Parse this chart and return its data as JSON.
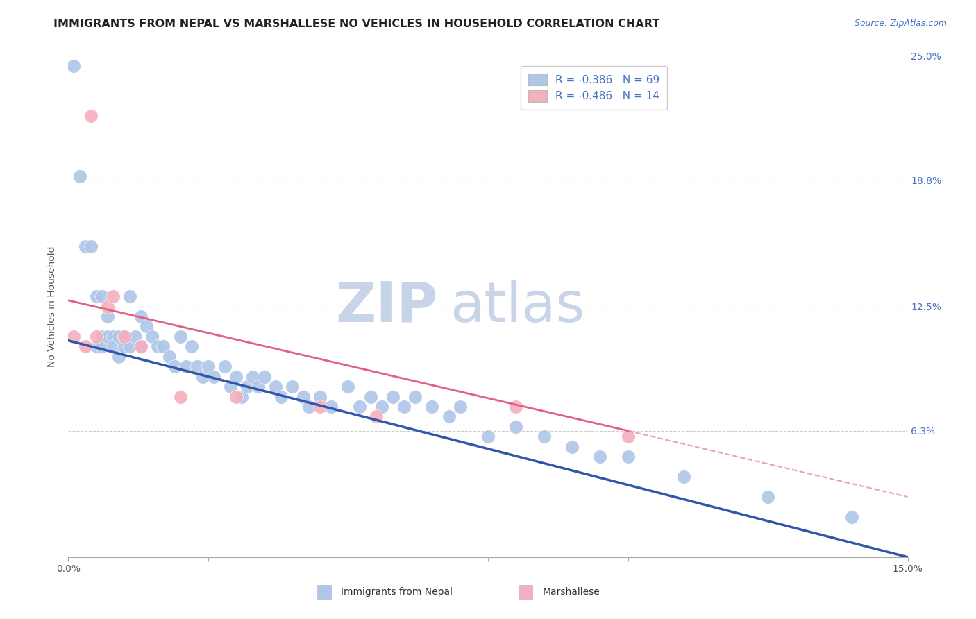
{
  "title": "IMMIGRANTS FROM NEPAL VS MARSHALLESE NO VEHICLES IN HOUSEHOLD CORRELATION CHART",
  "source_text": "Source: ZipAtlas.com",
  "ylabel": "No Vehicles in Household",
  "xlim": [
    0.0,
    0.15
  ],
  "ylim": [
    0.0,
    0.25
  ],
  "ytick_labels": [
    "6.3%",
    "12.5%",
    "18.8%",
    "25.0%"
  ],
  "ytick_values": [
    0.063,
    0.125,
    0.188,
    0.25
  ],
  "watermark_zip": "ZIP",
  "watermark_atlas": "atlas",
  "watermark_color": "#c8d4e8",
  "background_color": "#ffffff",
  "grid_color": "#cccccc",
  "nepal_color": "#aec6e8",
  "nepal_line_color": "#3355aa",
  "marshallese_color": "#f4b0be",
  "marshallese_line_color": "#e06080",
  "nepal_R": "-0.386",
  "nepal_N": "69",
  "marshallese_R": "-0.486",
  "marshallese_N": "14",
  "nepal_scatter_x": [
    0.001,
    0.002,
    0.003,
    0.004,
    0.005,
    0.005,
    0.006,
    0.006,
    0.006,
    0.007,
    0.007,
    0.008,
    0.008,
    0.009,
    0.009,
    0.01,
    0.01,
    0.011,
    0.011,
    0.012,
    0.013,
    0.013,
    0.014,
    0.015,
    0.016,
    0.017,
    0.018,
    0.019,
    0.02,
    0.021,
    0.022,
    0.023,
    0.024,
    0.025,
    0.026,
    0.028,
    0.029,
    0.03,
    0.031,
    0.032,
    0.033,
    0.034,
    0.035,
    0.037,
    0.038,
    0.04,
    0.042,
    0.043,
    0.045,
    0.047,
    0.05,
    0.052,
    0.054,
    0.056,
    0.058,
    0.06,
    0.062,
    0.065,
    0.068,
    0.07,
    0.075,
    0.08,
    0.085,
    0.09,
    0.095,
    0.1,
    0.11,
    0.125,
    0.14
  ],
  "nepal_scatter_y": [
    0.245,
    0.19,
    0.155,
    0.155,
    0.13,
    0.105,
    0.13,
    0.11,
    0.105,
    0.12,
    0.11,
    0.11,
    0.105,
    0.11,
    0.1,
    0.11,
    0.105,
    0.13,
    0.105,
    0.11,
    0.12,
    0.105,
    0.115,
    0.11,
    0.105,
    0.105,
    0.1,
    0.095,
    0.11,
    0.095,
    0.105,
    0.095,
    0.09,
    0.095,
    0.09,
    0.095,
    0.085,
    0.09,
    0.08,
    0.085,
    0.09,
    0.085,
    0.09,
    0.085,
    0.08,
    0.085,
    0.08,
    0.075,
    0.08,
    0.075,
    0.085,
    0.075,
    0.08,
    0.075,
    0.08,
    0.075,
    0.08,
    0.075,
    0.07,
    0.075,
    0.06,
    0.065,
    0.06,
    0.055,
    0.05,
    0.05,
    0.04,
    0.03,
    0.02
  ],
  "marshallese_scatter_x": [
    0.001,
    0.003,
    0.004,
    0.005,
    0.007,
    0.008,
    0.01,
    0.013,
    0.02,
    0.03,
    0.045,
    0.055,
    0.08,
    0.1
  ],
  "marshallese_scatter_y": [
    0.11,
    0.105,
    0.22,
    0.11,
    0.125,
    0.13,
    0.11,
    0.105,
    0.08,
    0.08,
    0.075,
    0.07,
    0.075,
    0.06
  ],
  "nepal_line_x0": 0.0,
  "nepal_line_y0": 0.108,
  "nepal_line_x1": 0.15,
  "nepal_line_y1": 0.0,
  "marsh_line_solid_x0": 0.0,
  "marsh_line_solid_y0": 0.128,
  "marsh_line_solid_x1": 0.1,
  "marsh_line_solid_y1": 0.063,
  "marsh_line_dash_x0": 0.1,
  "marsh_line_dash_y0": 0.063,
  "marsh_line_dash_x1": 0.15,
  "marsh_line_dash_y1": 0.03,
  "title_fontsize": 11.5,
  "label_fontsize": 10,
  "tick_fontsize": 10,
  "legend_fontsize": 11,
  "r_n_color": "#4472c4"
}
